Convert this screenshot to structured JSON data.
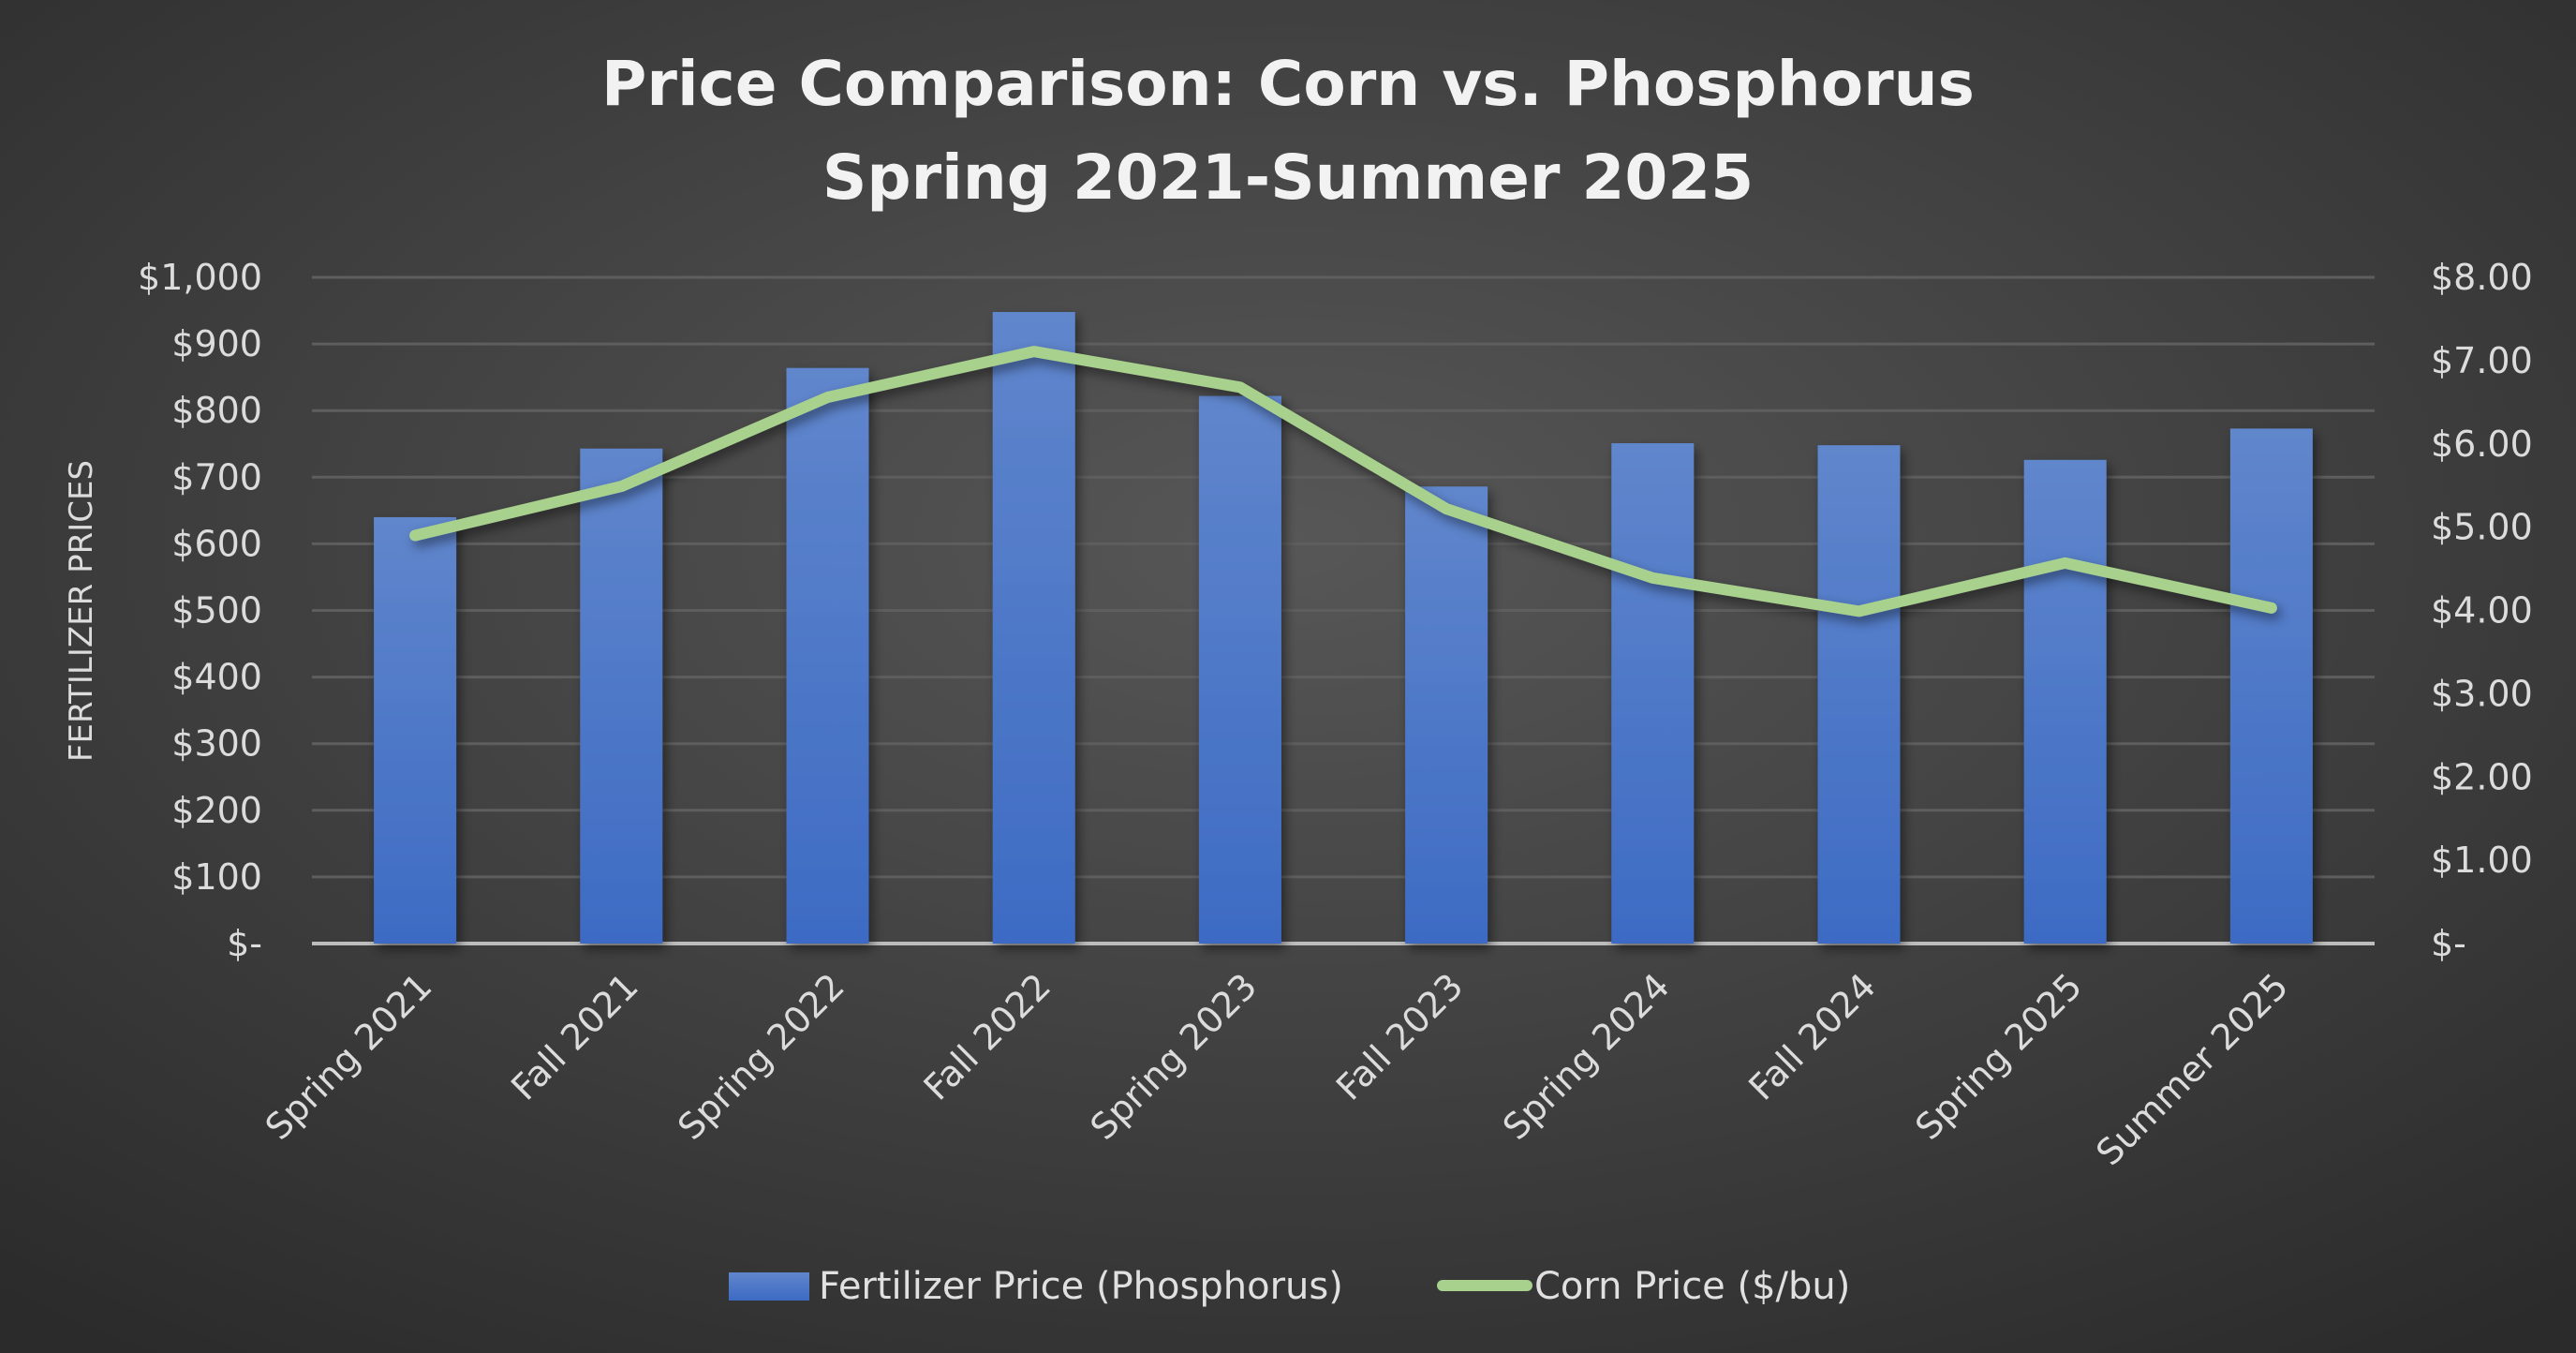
{
  "chart_data": {
    "type": "bar+line",
    "title": "Price Comparison: Corn vs. Phosphorus",
    "subtitle": "Spring 2021-Summer 2025",
    "ylabel": "FERTILIZER PRICES",
    "y2label": "",
    "categories": [
      "Spring 2021",
      "Fall 2021",
      "Spring 2022",
      "Fall 2022",
      "Spring 2023",
      "Fall 2023",
      "Spring 2024",
      "Fall 2024",
      "Spring 2025",
      "Summer 2025"
    ],
    "series": [
      {
        "name": "Fertilizer Price (Phosphorus)",
        "type": "bar",
        "axis": "left",
        "color": "#4472c4",
        "values": [
          640,
          743,
          864,
          948,
          822,
          686,
          751,
          748,
          726,
          773
        ]
      },
      {
        "name": "Corn Price ($/bu)",
        "type": "line",
        "axis": "right",
        "color": "#a9d18e",
        "values": [
          4.9,
          5.49,
          6.56,
          7.11,
          6.68,
          5.22,
          4.39,
          3.99,
          4.57,
          4.03
        ]
      }
    ],
    "ylim": [
      0,
      1000
    ],
    "y2lim": [
      0,
      8
    ],
    "yticks": [
      "$-",
      "$100",
      "$200",
      "$300",
      "$400",
      "$500",
      "$600",
      "$700",
      "$800",
      "$900",
      "$1,000"
    ],
    "y2ticks": [
      "$-",
      "$1.00",
      "$2.00",
      "$3.00",
      "$4.00",
      "$5.00",
      "$6.00",
      "$7.00",
      "$8.00"
    ],
    "grid": true,
    "legend_position": "bottom",
    "background": "#3a3a3a"
  }
}
